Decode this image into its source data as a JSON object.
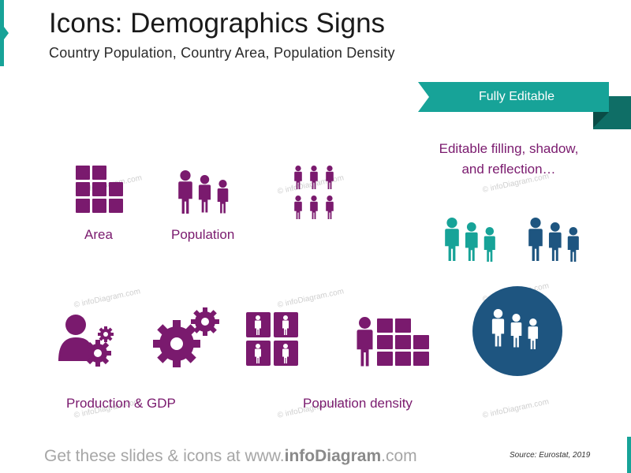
{
  "header": {
    "title": "Icons: Demographics Signs",
    "subtitle": "Country Population,  Country Area, Population  Density"
  },
  "ribbon": {
    "label": "Fully Editable"
  },
  "editable_note": {
    "line1": "Editable filling, shadow,",
    "line2": "and reflection…"
  },
  "captions": {
    "area": "Area",
    "population": "Population",
    "production": "Production & GDP",
    "population_density": "Population density"
  },
  "watermark": {
    "text": "© infoDiagram.com"
  },
  "footer": {
    "prefix": "Get these slides & icons at www.",
    "brand": "infoDiagram",
    "suffix": ".com"
  },
  "source": "Source: Eurostat, 2019",
  "icons": {
    "area": "area-grid-icon",
    "population": "population-people-icon",
    "density": "population-density-icon",
    "production": "production-person-gears-icon",
    "gears": "gears-icon",
    "density_boxes": "density-boxes-icon",
    "person_area": "person-area-icon",
    "people_teal": "people-teal-icon",
    "people_blue": "people-blue-icon",
    "people_circle": "people-circle-icon"
  },
  "colors": {
    "purple": "#7a1a6e",
    "teal": "#17a398",
    "dark_teal": "#0f6e66",
    "navy": "#1e5580",
    "footer_gray": "#a6a6a6"
  }
}
